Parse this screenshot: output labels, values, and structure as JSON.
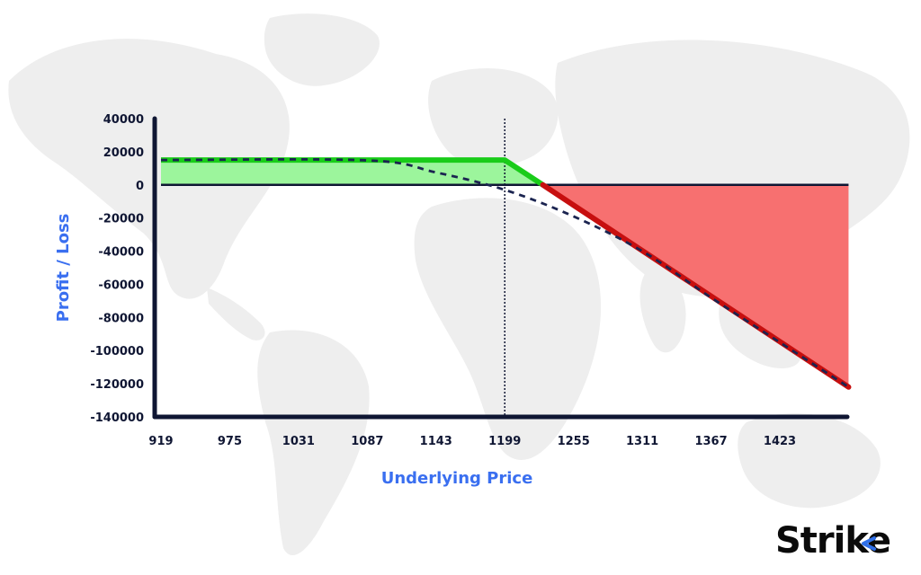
{
  "brand": {
    "name": "Strike",
    "accent_color": "#2f6fe8"
  },
  "colors": {
    "profit_fill": "#9cf59c",
    "profit_line": "#19cc19",
    "loss_fill": "#f77070",
    "loss_line": "#c70f0f",
    "axis": "#0f1633",
    "axis_title": "#3a6ff0",
    "dashed_line": "#1b2450",
    "map_color": "#eeeeee"
  },
  "chart_data": {
    "type": "area",
    "title": "",
    "xlabel": "Underlying Price",
    "ylabel": "Profit / Loss",
    "x_ticks": [
      919,
      975,
      1031,
      1087,
      1143,
      1199,
      1255,
      1311,
      1367,
      1423
    ],
    "y_ticks": [
      40000,
      20000,
      0,
      -20000,
      -40000,
      -60000,
      -80000,
      -100000,
      -120000,
      -140000
    ],
    "xlim": [
      919,
      1479
    ],
    "ylim": [
      -140000,
      40000
    ],
    "grid": false,
    "strike_marker_x": 1199,
    "series": [
      {
        "kind": "expiry_payoff",
        "x": [
          919,
          1199,
          1230,
          1479
        ],
        "y": [
          15000,
          15000,
          0,
          -122000
        ]
      },
      {
        "kind": "current_payoff_dashed",
        "x": [
          919,
          1087,
          1143,
          1199,
          1255,
          1311,
          1367,
          1423,
          1479
        ],
        "y": [
          15000,
          14800,
          7500,
          -3000,
          -19000,
          -40000,
          -68000,
          -95000,
          -122000
        ]
      }
    ]
  }
}
